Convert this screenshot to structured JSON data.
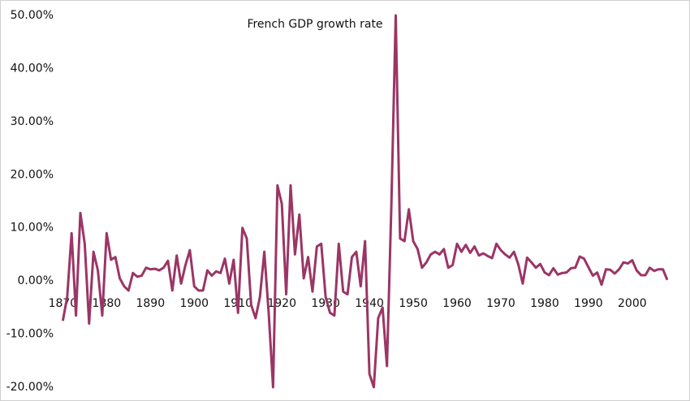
{
  "chart_data": {
    "type": "line",
    "title": "French GDP growth rate",
    "x": [
      1870,
      1871,
      1872,
      1873,
      1874,
      1875,
      1876,
      1877,
      1878,
      1879,
      1880,
      1881,
      1882,
      1883,
      1884,
      1885,
      1886,
      1887,
      1888,
      1889,
      1890,
      1891,
      1892,
      1893,
      1894,
      1895,
      1896,
      1897,
      1898,
      1899,
      1900,
      1901,
      1902,
      1903,
      1904,
      1905,
      1906,
      1907,
      1908,
      1909,
      1910,
      1911,
      1912,
      1913,
      1914,
      1915,
      1916,
      1917,
      1918,
      1919,
      1920,
      1921,
      1922,
      1923,
      1924,
      1925,
      1926,
      1927,
      1928,
      1929,
      1930,
      1931,
      1932,
      1933,
      1934,
      1935,
      1936,
      1937,
      1938,
      1939,
      1940,
      1941,
      1942,
      1943,
      1944,
      1945,
      1946,
      1947,
      1948,
      1949,
      1950,
      1951,
      1952,
      1953,
      1954,
      1955,
      1956,
      1957,
      1958,
      1959,
      1960,
      1961,
      1962,
      1963,
      1964,
      1965,
      1966,
      1967,
      1968,
      1969,
      1970,
      1971,
      1972,
      1973,
      1974,
      1975,
      1976,
      1977,
      1978,
      1979,
      1980,
      1981,
      1982,
      1983,
      1984,
      1985,
      1986,
      1987,
      1988,
      1989,
      1990,
      1991,
      1992,
      1993,
      1994,
      1995,
      1996,
      1997,
      1998,
      1999,
      2000,
      2001,
      2002,
      2003,
      2004,
      2005,
      2006,
      2007,
      2008
    ],
    "series": [
      {
        "name": "French GDP growth rate",
        "color": "#9b3565",
        "values": [
          -7.5,
          -3,
          9,
          -6.5,
          12.8,
          7,
          -8,
          5.5,
          2,
          -6.5,
          9,
          4,
          4.5,
          0.5,
          -1,
          -1.8,
          1.5,
          0.8,
          1,
          2.5,
          2.2,
          2.3,
          2,
          2.5,
          3.8,
          -1.8,
          4.8,
          -0.5,
          3,
          5.8,
          -1,
          -1.8,
          -1.8,
          2,
          1,
          1.8,
          1.5,
          4.2,
          -0.5,
          4,
          -6,
          10,
          8,
          -4.5,
          -7,
          -3,
          5.5,
          -6,
          -20,
          18,
          14.5,
          -2.5,
          18,
          5,
          12.5,
          0.5,
          4.5,
          -2,
          6.5,
          7,
          -3,
          -6,
          -6.5,
          7,
          -2,
          -2.5,
          4.5,
          5.5,
          -1,
          7.5,
          -17.5,
          -20,
          -7,
          -5,
          -16,
          14,
          50,
          8,
          7.5,
          13.5,
          7.5,
          6,
          2.5,
          3.5,
          5,
          5.5,
          5,
          6,
          2.5,
          3,
          7,
          5.5,
          6.8,
          5.3,
          6.5,
          4.8,
          5.2,
          4.7,
          4.3,
          7,
          5.8,
          5,
          4.4,
          5.5,
          3.1,
          -0.5,
          4.4,
          3.5,
          2.5,
          3.2,
          1.6,
          1.1,
          2.4,
          1.2,
          1.5,
          1.6,
          2.4,
          2.5,
          4.6,
          4.2,
          2.6,
          1,
          1.6,
          -0.7,
          2.2,
          2.1,
          1.4,
          2.2,
          3.5,
          3.3,
          3.9,
          2,
          1.1,
          1.1,
          2.5,
          1.9,
          2.2,
          2.2,
          0.2
        ]
      }
    ],
    "xlim": [
      1869,
      2008
    ],
    "xticks": [
      1870,
      1880,
      1890,
      1900,
      1910,
      1920,
      1930,
      1940,
      1950,
      1960,
      1970,
      1980,
      1990,
      2000
    ],
    "ylim": [
      -20,
      50
    ],
    "yticks": [
      {
        "value": -20,
        "label": "-20.00%"
      },
      {
        "value": -10,
        "label": "-10.00%"
      },
      {
        "value": 0,
        "label": "0.00%"
      },
      {
        "value": 10,
        "label": "10.00%"
      },
      {
        "value": 20,
        "label": "20.00%"
      },
      {
        "value": 30,
        "label": "30.00%"
      },
      {
        "value": 40,
        "label": "40.00%"
      },
      {
        "value": 50,
        "label": "50.00%"
      }
    ],
    "grid": false
  }
}
